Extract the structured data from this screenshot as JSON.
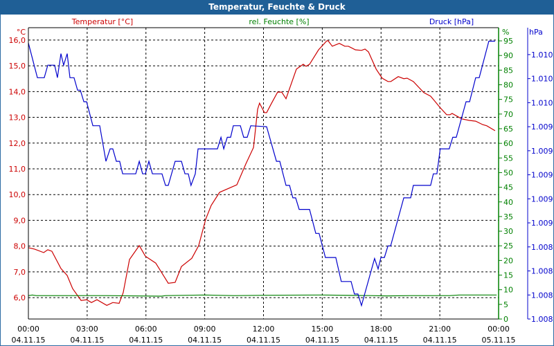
{
  "colors": {
    "title_bg": "#1f5f96",
    "temperature": "#cc0000",
    "humidity": "#008000",
    "pressure": "#0000cc"
  },
  "chart_data": {
    "type": "line",
    "title": "Temperatur, Feuchte & Druck",
    "legend": [
      "Temperatur [°C]",
      "rel. Feuchte [%]",
      "Druck [hPa]"
    ],
    "grid": true,
    "x_axis": {
      "range_hours": [
        0,
        24
      ],
      "ticks": [
        {
          "time": "00:00",
          "date": "04.11.15"
        },
        {
          "time": "03:00",
          "date": "04.11.15"
        },
        {
          "time": "06:00",
          "date": "04.11.15"
        },
        {
          "time": "09:00",
          "date": "04.11.15"
        },
        {
          "time": "12:00",
          "date": "04.11.15"
        },
        {
          "time": "15:00",
          "date": "04.11.15"
        },
        {
          "time": "18:00",
          "date": "04.11.15"
        },
        {
          "time": "21:00",
          "date": "04.11.15"
        },
        {
          "time": "00:00",
          "date": "05.11.15"
        }
      ]
    },
    "y_axes": {
      "temperature": {
        "unit": "°C",
        "ylim": [
          5.17,
          16.48
        ],
        "ticks": [
          6,
          7,
          8,
          9,
          10,
          11,
          12,
          13,
          14,
          15,
          16
        ],
        "tick_labels": [
          "6,0",
          "7,0",
          "8,0",
          "9,0",
          "10,0",
          "11,0",
          "12,0",
          "13,0",
          "14,0",
          "15,0",
          "16,0"
        ]
      },
      "humidity": {
        "unit": "%",
        "ylim": [
          0,
          99.5
        ],
        "ticks": [
          0,
          5,
          10,
          15,
          20,
          25,
          30,
          35,
          40,
          45,
          50,
          55,
          60,
          65,
          70,
          75,
          80,
          85,
          90,
          95
        ],
        "tick_labels": [
          "0",
          "5",
          "10",
          "15",
          "20",
          "25",
          "30",
          "35",
          "40",
          "45",
          "50",
          "55",
          "60",
          "65",
          "70",
          "75",
          "80",
          "85",
          "90",
          "95"
        ]
      },
      "pressure": {
        "unit": "hPa",
        "ylim": [
          1007.5,
          1010.53
        ],
        "ticks": [
          1007.5,
          1007.75,
          1008.0,
          1008.25,
          1008.5,
          1008.75,
          1009.0,
          1009.25,
          1009.5,
          1009.75,
          1010.0,
          1010.25
        ],
        "tick_labels": [
          "1.008",
          "1.008",
          "1.008",
          "1.008",
          "1.009",
          "1.009",
          "1.009",
          "1.009",
          "1.009",
          "1.010",
          "1.010",
          "1.010"
        ]
      }
    },
    "series": [
      {
        "name": "Temperatur [°C]",
        "axis": "temperature",
        "points": [
          [
            0,
            7.94
          ],
          [
            0.32,
            7.88
          ],
          [
            0.78,
            7.75
          ],
          [
            0.99,
            7.86
          ],
          [
            1.2,
            7.8
          ],
          [
            1.66,
            7.13
          ],
          [
            1.98,
            6.86
          ],
          [
            2.26,
            6.35
          ],
          [
            2.69,
            5.89
          ],
          [
            2.97,
            5.92
          ],
          [
            3.22,
            5.81
          ],
          [
            3.5,
            5.92
          ],
          [
            4.0,
            5.7
          ],
          [
            4.31,
            5.81
          ],
          [
            4.63,
            5.78
          ],
          [
            4.84,
            6.19
          ],
          [
            5.16,
            7.48
          ],
          [
            5.66,
            8.02
          ],
          [
            5.97,
            7.61
          ],
          [
            6.5,
            7.34
          ],
          [
            7.14,
            6.56
          ],
          [
            7.49,
            6.59
          ],
          [
            7.81,
            7.21
          ],
          [
            8.34,
            7.53
          ],
          [
            8.69,
            8.02
          ],
          [
            9.05,
            9.04
          ],
          [
            9.33,
            9.58
          ],
          [
            9.76,
            10.09
          ],
          [
            10.64,
            10.38
          ],
          [
            11.1,
            11.19
          ],
          [
            11.49,
            11.83
          ],
          [
            11.7,
            13.31
          ],
          [
            11.8,
            13.55
          ],
          [
            12.05,
            13.18
          ],
          [
            12.16,
            13.18
          ],
          [
            12.4,
            13.53
          ],
          [
            12.72,
            13.98
          ],
          [
            12.93,
            13.98
          ],
          [
            13.15,
            13.72
          ],
          [
            13.68,
            14.87
          ],
          [
            14.03,
            15.06
          ],
          [
            14.17,
            14.98
          ],
          [
            14.35,
            15.06
          ],
          [
            14.81,
            15.62
          ],
          [
            15.23,
            15.97
          ],
          [
            15.3,
            15.97
          ],
          [
            15.51,
            15.76
          ],
          [
            15.87,
            15.87
          ],
          [
            16.15,
            15.76
          ],
          [
            16.33,
            15.76
          ],
          [
            16.69,
            15.62
          ],
          [
            17.0,
            15.6
          ],
          [
            17.18,
            15.65
          ],
          [
            17.36,
            15.54
          ],
          [
            17.75,
            14.87
          ],
          [
            18.06,
            14.52
          ],
          [
            18.35,
            14.39
          ],
          [
            18.5,
            14.39
          ],
          [
            18.88,
            14.58
          ],
          [
            19.16,
            14.5
          ],
          [
            19.33,
            14.52
          ],
          [
            19.65,
            14.39
          ],
          [
            20.18,
            13.96
          ],
          [
            20.53,
            13.82
          ],
          [
            20.71,
            13.66
          ],
          [
            21.0,
            13.39
          ],
          [
            21.35,
            13.1
          ],
          [
            21.52,
            13.1
          ],
          [
            21.63,
            13.15
          ],
          [
            22.12,
            12.94
          ],
          [
            22.5,
            12.88
          ],
          [
            22.83,
            12.85
          ],
          [
            23.18,
            12.72
          ],
          [
            23.4,
            12.67
          ],
          [
            23.82,
            12.48
          ]
        ]
      },
      {
        "name": "rel. Feuchte [%]",
        "axis": "humidity",
        "points": [
          [
            0,
            8.0
          ],
          [
            0.2,
            8.2
          ],
          [
            0.4,
            8.0
          ],
          [
            4.0,
            8.0
          ],
          [
            6.8,
            7.8
          ],
          [
            7.0,
            8.0
          ],
          [
            9.0,
            8.2
          ],
          [
            10.5,
            8.0
          ],
          [
            12.0,
            8.1
          ],
          [
            15.0,
            8.2
          ],
          [
            17.5,
            8.0
          ],
          [
            18.3,
            7.9
          ],
          [
            19.5,
            8.0
          ],
          [
            21.5,
            8.0
          ],
          [
            22.0,
            8.2
          ],
          [
            23.9,
            8.2
          ]
        ]
      },
      {
        "name": "Druck [hPa]",
        "axis": "pressure",
        "points": [
          [
            0,
            1010.37
          ],
          [
            0.46,
            1010.01
          ],
          [
            0.81,
            1010.01
          ],
          [
            0.99,
            1010.14
          ],
          [
            1.34,
            1010.14
          ],
          [
            1.48,
            1010.01
          ],
          [
            1.66,
            1010.26
          ],
          [
            1.8,
            1010.14
          ],
          [
            1.98,
            1010.26
          ],
          [
            2.12,
            1010.01
          ],
          [
            2.33,
            1010.01
          ],
          [
            2.51,
            1009.88
          ],
          [
            2.65,
            1009.88
          ],
          [
            2.83,
            1009.76
          ],
          [
            2.97,
            1009.76
          ],
          [
            3.29,
            1009.51
          ],
          [
            3.64,
            1009.51
          ],
          [
            3.96,
            1009.14
          ],
          [
            4.17,
            1009.27
          ],
          [
            4.31,
            1009.27
          ],
          [
            4.49,
            1009.14
          ],
          [
            4.66,
            1009.14
          ],
          [
            4.81,
            1009.01
          ],
          [
            5.48,
            1009.01
          ],
          [
            5.66,
            1009.14
          ],
          [
            5.83,
            1009.01
          ],
          [
            5.97,
            1009.01
          ],
          [
            6.15,
            1009.14
          ],
          [
            6.33,
            1009.01
          ],
          [
            6.82,
            1009.01
          ],
          [
            7.0,
            1008.89
          ],
          [
            7.14,
            1008.89
          ],
          [
            7.49,
            1009.14
          ],
          [
            7.81,
            1009.14
          ],
          [
            7.99,
            1009.01
          ],
          [
            8.16,
            1009.01
          ],
          [
            8.3,
            1008.89
          ],
          [
            8.52,
            1009.01
          ],
          [
            8.66,
            1009.27
          ],
          [
            9.65,
            1009.27
          ],
          [
            9.83,
            1009.39
          ],
          [
            9.97,
            1009.27
          ],
          [
            10.15,
            1009.39
          ],
          [
            10.32,
            1009.39
          ],
          [
            10.46,
            1009.51
          ],
          [
            10.82,
            1009.51
          ],
          [
            10.99,
            1009.39
          ],
          [
            11.17,
            1009.39
          ],
          [
            11.35,
            1009.51
          ],
          [
            12.16,
            1009.5
          ],
          [
            12.66,
            1009.14
          ],
          [
            12.83,
            1009.14
          ],
          [
            13.15,
            1008.89
          ],
          [
            13.33,
            1008.89
          ],
          [
            13.5,
            1008.76
          ],
          [
            13.64,
            1008.76
          ],
          [
            13.82,
            1008.64
          ],
          [
            14.35,
            1008.64
          ],
          [
            14.67,
            1008.39
          ],
          [
            14.84,
            1008.39
          ],
          [
            15.16,
            1008.14
          ],
          [
            15.69,
            1008.14
          ],
          [
            15.97,
            1007.89
          ],
          [
            16.47,
            1007.89
          ],
          [
            16.64,
            1007.76
          ],
          [
            16.82,
            1007.76
          ],
          [
            17.0,
            1007.64
          ],
          [
            17.67,
            1008.13
          ],
          [
            17.85,
            1008.02
          ],
          [
            17.99,
            1008.14
          ],
          [
            18.17,
            1008.14
          ],
          [
            18.35,
            1008.26
          ],
          [
            18.49,
            1008.26
          ],
          [
            19.16,
            1008.76
          ],
          [
            19.51,
            1008.76
          ],
          [
            19.65,
            1008.89
          ],
          [
            20.53,
            1008.89
          ],
          [
            20.67,
            1009.01
          ],
          [
            20.85,
            1009.01
          ],
          [
            21.02,
            1009.27
          ],
          [
            21.48,
            1009.27
          ],
          [
            21.66,
            1009.39
          ],
          [
            21.84,
            1009.39
          ],
          [
            22.34,
            1009.76
          ],
          [
            22.52,
            1009.76
          ],
          [
            22.83,
            1010.01
          ],
          [
            23.01,
            1010.01
          ],
          [
            23.5,
            1010.39
          ],
          [
            23.82,
            1010.39
          ]
        ]
      }
    ]
  }
}
